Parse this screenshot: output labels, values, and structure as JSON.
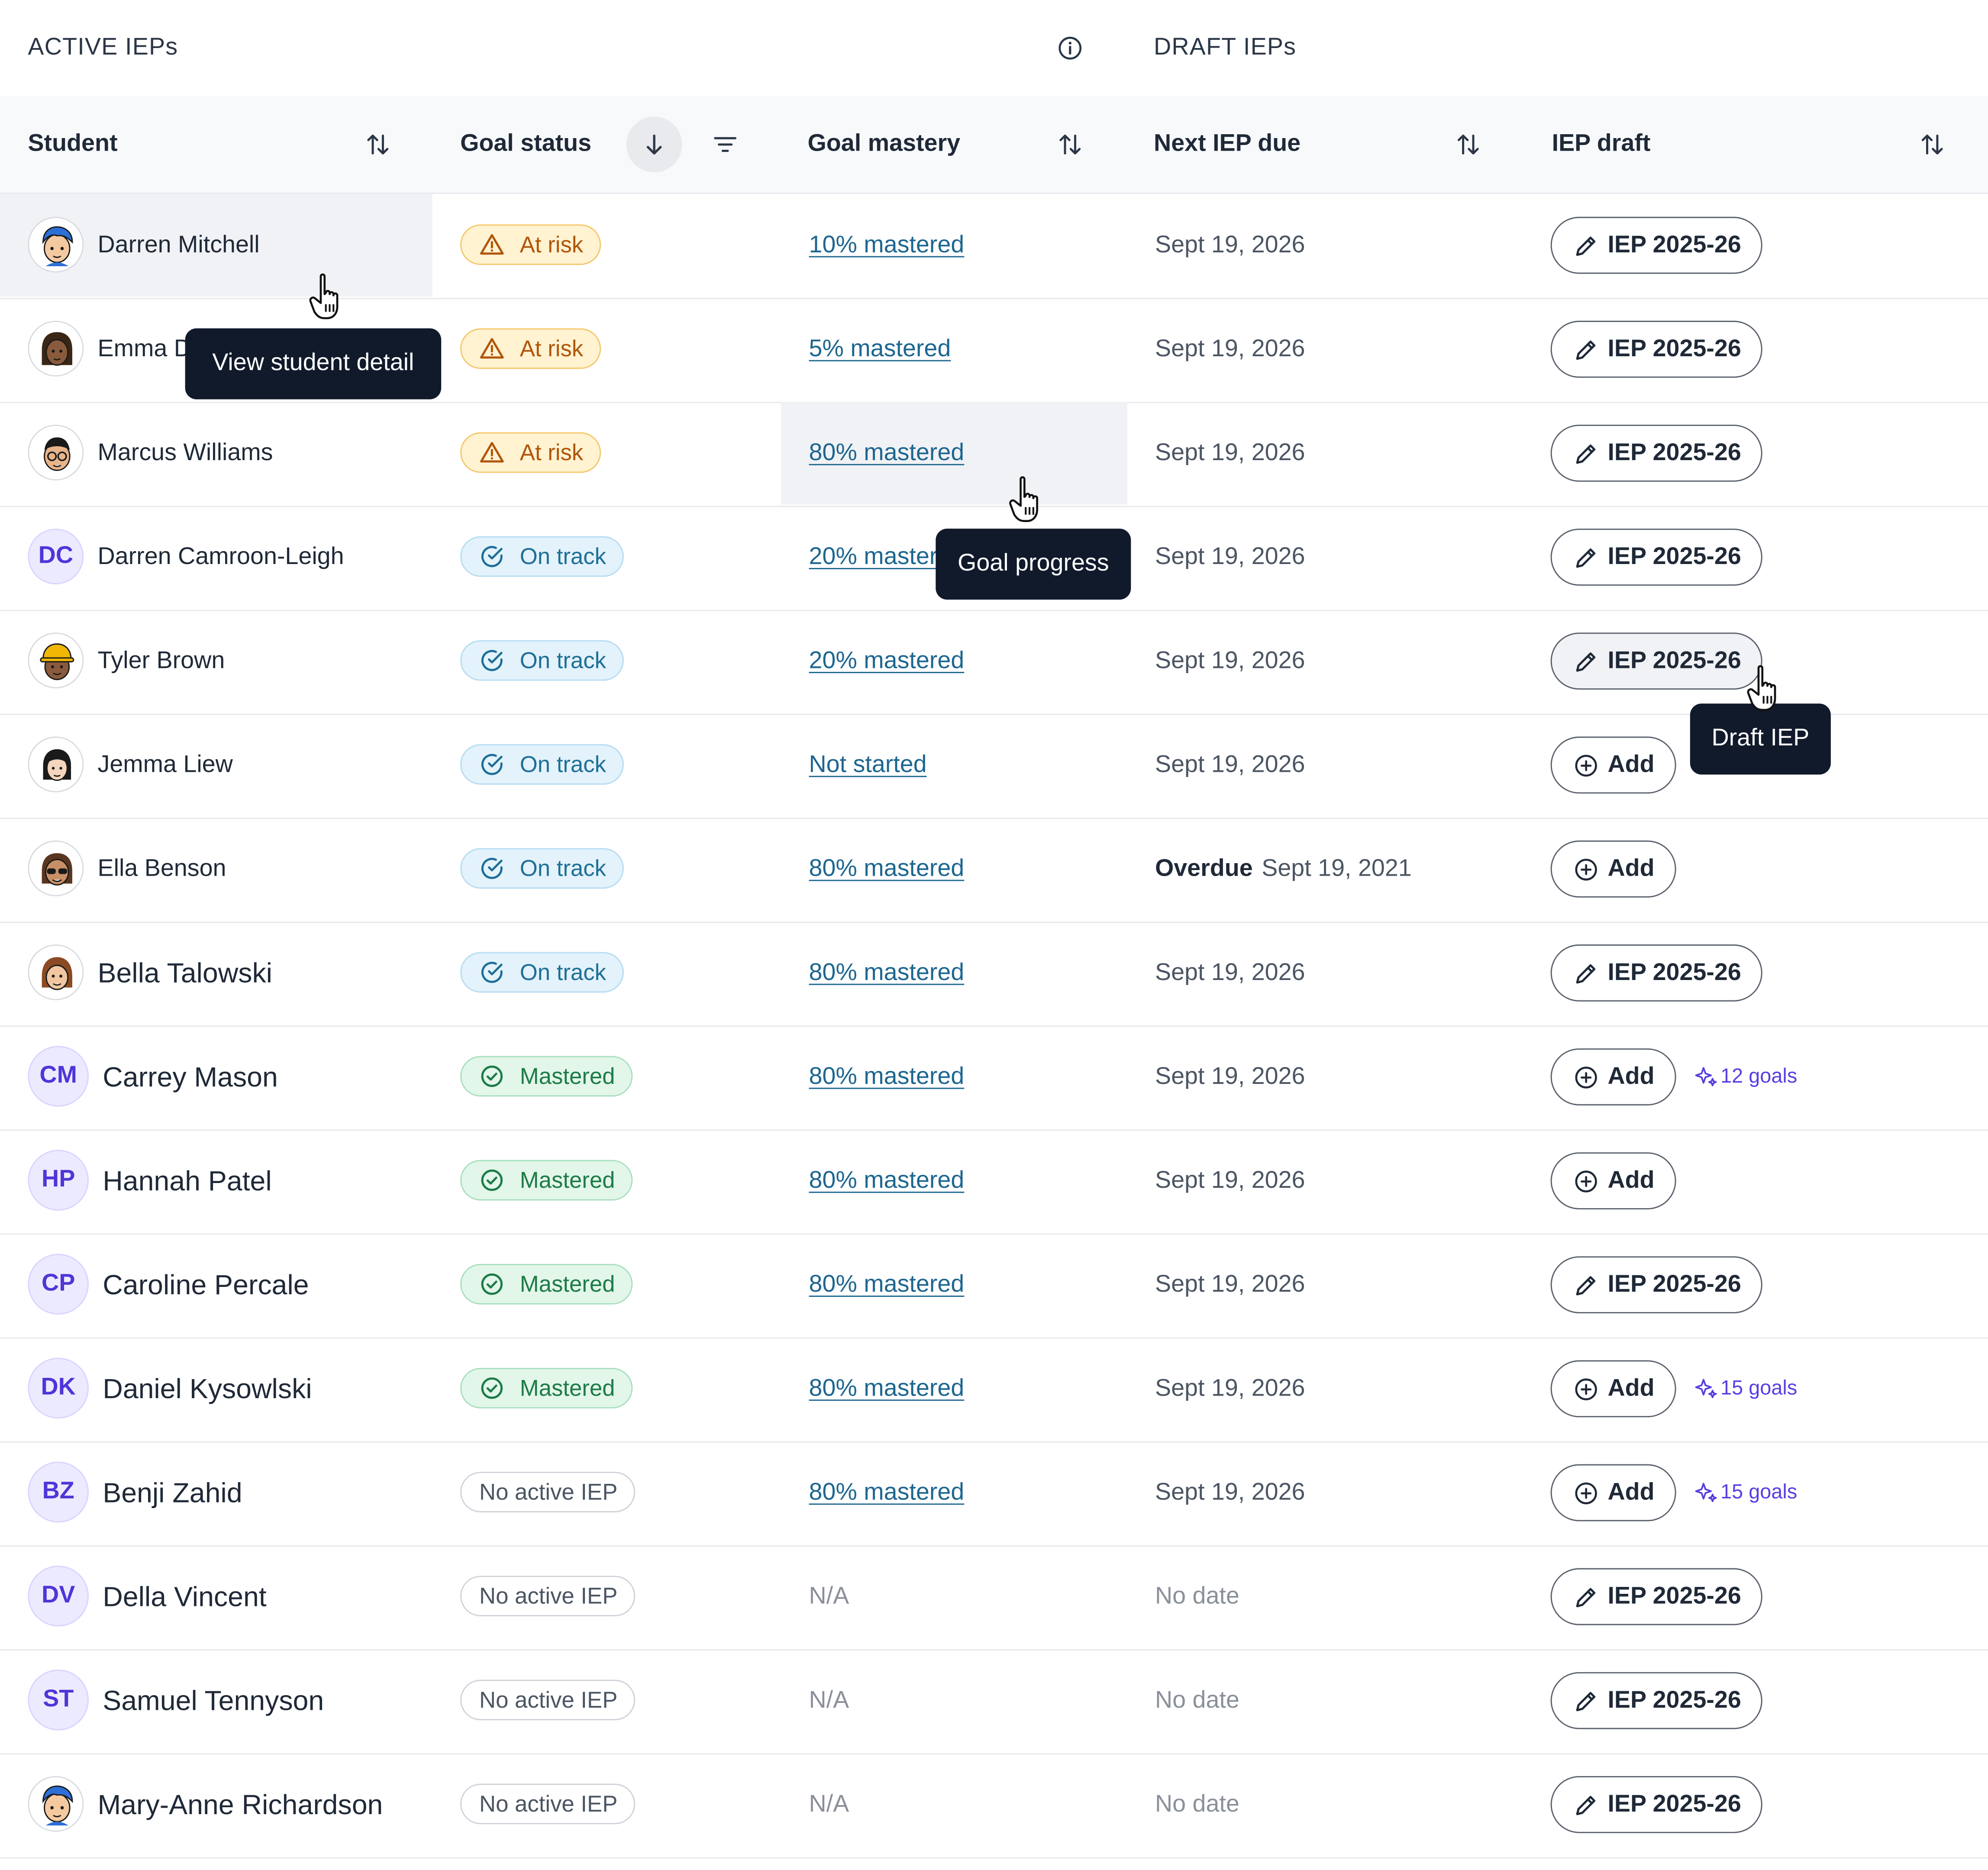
{
  "sections": {
    "active": "ACTIVE IEPs",
    "draft": "DRAFT IEPs"
  },
  "columns": {
    "student": "Student",
    "goal_status": "Goal status",
    "goal_mastery": "Goal mastery",
    "next_due": "Next IEP due",
    "iep_draft": "IEP draft"
  },
  "tooltips": {
    "student": "View student detail",
    "mastery": "Goal progress",
    "draft": "Draft IEP"
  },
  "overdue_label": "Overdue",
  "students": [
    {
      "name": "Darren Mitchell",
      "avatar": "photo-blue-hair",
      "status": "At risk",
      "mastery": "10% mastered",
      "due": "Sept 19, 2026",
      "draft": "IEP 2025-26"
    },
    {
      "name": "Emma D",
      "avatar": "photo-braids",
      "status": "At risk",
      "mastery": "5% mastered",
      "due": "Sept 19, 2026",
      "draft": "IEP 2025-26"
    },
    {
      "name": "Marcus Williams",
      "avatar": "photo-glasses",
      "status": "At risk",
      "mastery": "80% mastered",
      "due": "Sept 19, 2026",
      "draft": "IEP 2025-26"
    },
    {
      "name": "Darren Camroon-Leigh",
      "initials": "DC",
      "status": "On track",
      "mastery": "20% master",
      "due": "Sept 19, 2026",
      "draft": "IEP 2025-26"
    },
    {
      "name": "Tyler Brown",
      "avatar": "photo-hardhat",
      "status": "On track",
      "mastery": "20% mastered",
      "due": "Sept 19, 2026",
      "draft": "IEP 2025-26"
    },
    {
      "name": "Jemma Liew",
      "avatar": "photo-dark-hair",
      "status": "On track",
      "mastery": "Not started",
      "due": "Sept 19, 2026",
      "draft": "Add"
    },
    {
      "name": "Ella Benson",
      "avatar": "photo-sunglasses",
      "status": "On track",
      "mastery": "80% mastered",
      "due": "Sept 19, 2021",
      "overdue": true,
      "draft": "Add"
    },
    {
      "name": "Bella Talowski",
      "avatar": "photo-brown-hair",
      "status": "On track",
      "mastery": "80% mastered",
      "due": "Sept 19, 2026",
      "draft": "IEP 2025-26"
    },
    {
      "name": "Carrey Mason",
      "initials": "CM",
      "status": "Mastered",
      "mastery": "80% mastered",
      "due": "Sept 19, 2026",
      "draft": "Add",
      "goals": "12 goals"
    },
    {
      "name": "Hannah Patel",
      "initials": "HP",
      "status": "Mastered",
      "mastery": "80% mastered",
      "due": "Sept 19, 2026",
      "draft": "Add"
    },
    {
      "name": "Caroline Percale",
      "initials": "CP",
      "status": "Mastered",
      "mastery": "80% mastered",
      "due": "Sept 19, 2026",
      "draft": "IEP 2025-26"
    },
    {
      "name": "Daniel Kysowlski",
      "initials": "DK",
      "status": "Mastered",
      "mastery": "80% mastered",
      "due": "Sept 19, 2026",
      "draft": "Add",
      "goals": "15 goals"
    },
    {
      "name": "Benji Zahid",
      "initials": "BZ",
      "status": "No active IEP",
      "mastery": "80% mastered",
      "due": "Sept 19, 2026",
      "draft": "Add",
      "goals": "15 goals"
    },
    {
      "name": "Della Vincent",
      "initials": "DV",
      "status": "No active IEP",
      "mastery": "N/A",
      "due": "No date",
      "draft": "IEP 2025-26"
    },
    {
      "name": "Samuel Tennyson",
      "initials": "ST",
      "status": "No active IEP",
      "mastery": "N/A",
      "due": "No date",
      "draft": "IEP 2025-26"
    },
    {
      "name": "Mary-Anne Richardson",
      "avatar": "photo-blue-hair",
      "status": "No active IEP",
      "mastery": "N/A",
      "due": "No date",
      "draft": "IEP 2025-26"
    }
  ]
}
